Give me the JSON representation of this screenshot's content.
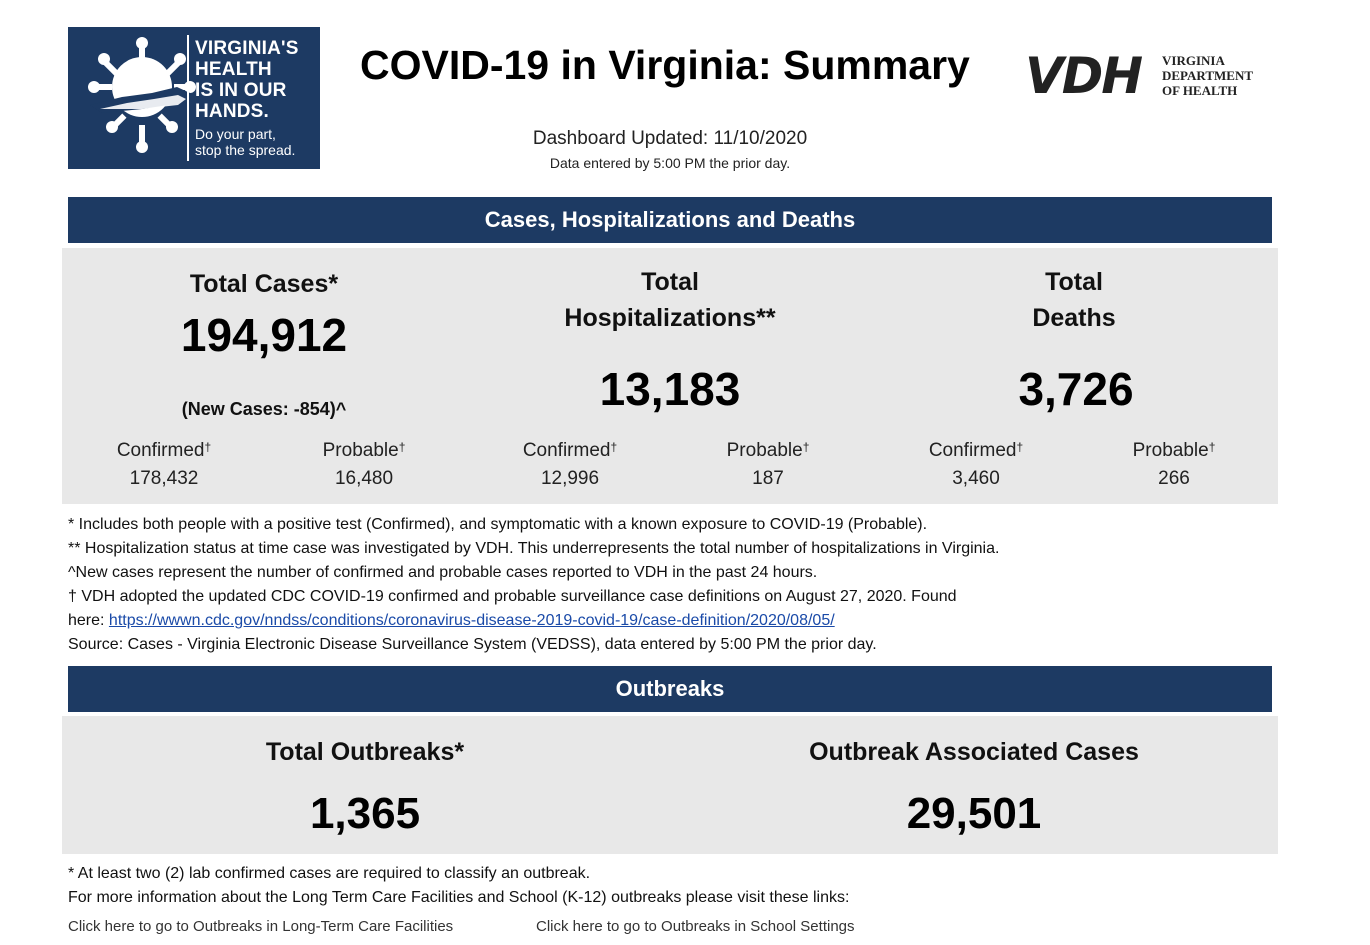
{
  "logo": {
    "line1": "VIRGINIA'S HEALTH IS IN OUR HANDS.",
    "line1_parts": [
      "VIRGINIA'S",
      "HEALTH",
      "IS IN OUR",
      "HANDS."
    ],
    "line2_parts": [
      "Do your part,",
      "stop the spread."
    ]
  },
  "header": {
    "title": "COVID-19 in Virginia: Summary",
    "updated": "Dashboard Updated: 11/10/2020",
    "data_entered": "Data entered by 5:00 PM the prior day."
  },
  "vdh_logo": {
    "mark": "VDH",
    "lines": [
      "VIRGINIA",
      "DEPARTMENT",
      "OF HEALTH"
    ]
  },
  "cases_section": {
    "title": "Cases, Hospitalizations and Deaths",
    "cases": {
      "label": "Total Cases*",
      "total": "194,912",
      "new_cases": "(New Cases: -854)^",
      "confirmed_label": "Confirmed",
      "confirmed": "178,432",
      "probable_label": "Probable",
      "probable": "16,480"
    },
    "hospitalizations": {
      "label_line1": "Total",
      "label_line2": "Hospitalizations**",
      "total": "13,183",
      "confirmed_label": "Confirmed",
      "confirmed": "12,996",
      "probable_label": "Probable",
      "probable": "187"
    },
    "deaths": {
      "label_line1": "Total",
      "label_line2": "Deaths",
      "total": "3,726",
      "confirmed_label": "Confirmed",
      "confirmed": "3,460",
      "probable_label": "Probable",
      "probable": "266"
    },
    "dagger": "†"
  },
  "notes": {
    "line1": "* Includes both people with a positive test (Confirmed), and symptomatic with a known exposure to COVID-19 (Probable).",
    "line2": "** Hospitalization status at time case was investigated by VDH. This underrepresents the total number of hospitalizations in Virginia.",
    "line3": "^New cases represent the number of confirmed and probable cases reported to VDH in the past 24 hours.",
    "line4": "† VDH adopted the updated CDC COVID-19 confirmed and probable surveillance case definitions on August 27, 2020. Found",
    "line5_prefix": "here: ",
    "line5_link": "https://wwwn.cdc.gov/nndss/conditions/coronavirus-disease-2019-covid-19/case-definition/2020/08/05/",
    "line6": "Source:  Cases - Virginia Electronic Disease Surveillance System (VEDSS), data entered by 5:00 PM the prior day."
  },
  "outbreaks_section": {
    "title": "Outbreaks",
    "total_label": "Total Outbreaks*",
    "total": "1,365",
    "assoc_label": "Outbreak Associated Cases",
    "assoc": "29,501"
  },
  "outbreak_notes": {
    "line1": "* At least two (2) lab confirmed cases are required to classify an outbreak.",
    "line2": "For more information about the Long Term Care Facilities and School (K-12) outbreaks please visit these links:"
  },
  "links": {
    "ltcf": "Click here to go to Outbreaks in Long-Term Care Facilities",
    "school": "Click here to go to Outbreaks in School Settings"
  },
  "colors": {
    "navy": "#1d3a63",
    "panel": "#e8e8e8",
    "link": "#1a4aa8"
  }
}
